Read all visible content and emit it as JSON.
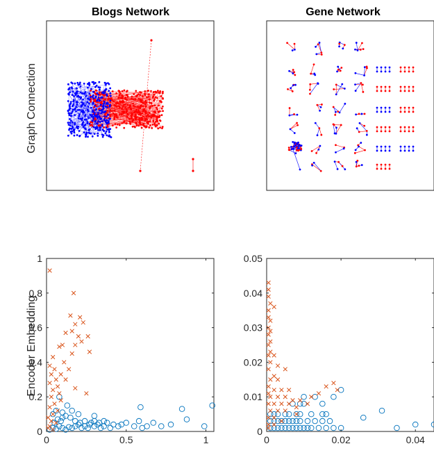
{
  "panels": {
    "top_left_title": "Blogs Network",
    "top_right_title": "Gene Network",
    "top_row_ylabel": "Graph Connection",
    "bottom_row_ylabel": "Encoder Embedding"
  },
  "colors": {
    "node_blue": "#0000ff",
    "node_red": "#ff0000",
    "series_circle": "#0072bd",
    "series_cross": "#d95319"
  },
  "chart_data": [
    {
      "type": "network",
      "title": "Blogs Network",
      "ylabel": "Graph Connection",
      "node_classes": [
        "blue",
        "red"
      ]
    },
    {
      "type": "network",
      "title": "Gene Network",
      "node_classes": [
        "blue",
        "red"
      ]
    },
    {
      "type": "scatter",
      "ylabel": "Encoder Embedding",
      "xlim": [
        0,
        1.05
      ],
      "ylim": [
        0,
        1
      ],
      "xticks": [
        0,
        0.5,
        1
      ],
      "xtick_labels": [
        "0",
        "0.5",
        "1"
      ],
      "yticks": [
        0,
        0.2,
        0.4,
        0.6,
        0.8,
        1
      ],
      "ytick_labels": [
        "0",
        "0.2",
        "0.4",
        "0.6",
        "0.8",
        "1"
      ],
      "series": [
        {
          "marker": "circle",
          "points": [
            [
              0.02,
              0.01
            ],
            [
              0.04,
              0.02
            ],
            [
              0.06,
              0.015
            ],
            [
              0.08,
              0.03
            ],
            [
              0.1,
              0.02
            ],
            [
              0.12,
              0.01
            ],
            [
              0.14,
              0.025
            ],
            [
              0.16,
              0.02
            ],
            [
              0.18,
              0.03
            ],
            [
              0.2,
              0.04
            ],
            [
              0.22,
              0.02
            ],
            [
              0.24,
              0.03
            ],
            [
              0.26,
              0.02
            ],
            [
              0.28,
              0.05
            ],
            [
              0.3,
              0.03
            ],
            [
              0.32,
              0.04
            ],
            [
              0.34,
              0.02
            ],
            [
              0.36,
              0.03
            ],
            [
              0.38,
              0.05
            ],
            [
              0.4,
              0.02
            ],
            [
              0.42,
              0.04
            ],
            [
              0.45,
              0.03
            ],
            [
              0.5,
              0.05
            ],
            [
              0.55,
              0.03
            ],
            [
              0.6,
              0.02
            ],
            [
              0.05,
              0.05
            ],
            [
              0.07,
              0.07
            ],
            [
              0.09,
              0.06
            ],
            [
              0.12,
              0.09
            ],
            [
              0.15,
              0.08
            ],
            [
              0.18,
              0.06
            ],
            [
              0.21,
              0.05
            ],
            [
              0.24,
              0.06
            ],
            [
              0.27,
              0.04
            ],
            [
              0.3,
              0.06
            ],
            [
              0.33,
              0.05
            ],
            [
              0.04,
              0.1
            ],
            [
              0.06,
              0.12
            ],
            [
              0.1,
              0.11
            ],
            [
              0.1,
              0.08
            ],
            [
              0.13,
              0.15
            ],
            [
              0.16,
              0.12
            ],
            [
              0.2,
              0.1
            ],
            [
              0.3,
              0.09
            ],
            [
              0.08,
              0.2
            ],
            [
              0.36,
              0.06
            ],
            [
              0.47,
              0.04
            ],
            [
              0.58,
              0.06
            ],
            [
              0.59,
              0.14
            ],
            [
              0.63,
              0.03
            ],
            [
              0.67,
              0.05
            ],
            [
              0.72,
              0.03
            ],
            [
              0.78,
              0.04
            ],
            [
              0.85,
              0.13
            ],
            [
              0.88,
              0.07
            ],
            [
              0.99,
              0.03
            ],
            [
              1.04,
              0.15
            ]
          ]
        },
        {
          "marker": "cross",
          "points": [
            [
              0.02,
              0.93
            ],
            [
              0.17,
              0.8
            ],
            [
              0.15,
              0.67
            ],
            [
              0.21,
              0.66
            ],
            [
              0.23,
              0.63
            ],
            [
              0.18,
              0.62
            ],
            [
              0.12,
              0.57
            ],
            [
              0.16,
              0.58
            ],
            [
              0.2,
              0.55
            ],
            [
              0.26,
              0.55
            ],
            [
              0.22,
              0.52
            ],
            [
              0.1,
              0.5
            ],
            [
              0.08,
              0.49
            ],
            [
              0.18,
              0.5
            ],
            [
              0.27,
              0.46
            ],
            [
              0.16,
              0.45
            ],
            [
              0.04,
              0.43
            ],
            [
              0.11,
              0.4
            ],
            [
              0.14,
              0.36
            ],
            [
              0.09,
              0.33
            ],
            [
              0.12,
              0.3
            ],
            [
              0.18,
              0.25
            ],
            [
              0.25,
              0.22
            ],
            [
              0.02,
              0.38
            ],
            [
              0.05,
              0.36
            ],
            [
              0.03,
              0.33
            ],
            [
              0.06,
              0.3
            ],
            [
              0.02,
              0.28
            ],
            [
              0.07,
              0.26
            ],
            [
              0.04,
              0.24
            ],
            [
              0.08,
              0.22
            ],
            [
              0.03,
              0.2
            ],
            [
              0.09,
              0.18
            ],
            [
              0.05,
              0.16
            ],
            [
              0.02,
              0.14
            ],
            [
              0.07,
              0.12
            ],
            [
              0.04,
              0.1
            ],
            [
              0.01,
              0.08
            ],
            [
              0.03,
              0.06
            ],
            [
              0.06,
              0.05
            ],
            [
              0.02,
              0.03
            ],
            [
              0.01,
              0.02
            ],
            [
              0.04,
              0.01
            ]
          ]
        }
      ]
    },
    {
      "type": "scatter",
      "xlim": [
        0,
        0.045
      ],
      "ylim": [
        0,
        0.05
      ],
      "xticks": [
        0,
        0.02,
        0.04
      ],
      "xtick_labels": [
        "0",
        "0.02",
        "0.04"
      ],
      "yticks": [
        0,
        0.01,
        0.02,
        0.03,
        0.04,
        0.05
      ],
      "ytick_labels": [
        "0",
        "0.01",
        "0.02",
        "0.03",
        "0.04",
        "0.05"
      ],
      "series": [
        {
          "marker": "circle",
          "points": [
            [
              0.001,
              0.001
            ],
            [
              0.002,
              0.001
            ],
            [
              0.003,
              0.001
            ],
            [
              0.004,
              0.001
            ],
            [
              0.005,
              0.001
            ],
            [
              0.006,
              0.001
            ],
            [
              0.007,
              0.001
            ],
            [
              0.008,
              0.001
            ],
            [
              0.009,
              0.001
            ],
            [
              0.01,
              0.001
            ],
            [
              0.011,
              0.001
            ],
            [
              0.012,
              0.001
            ],
            [
              0.014,
              0.001
            ],
            [
              0.016,
              0.001
            ],
            [
              0.018,
              0.001
            ],
            [
              0.02,
              0.001
            ],
            [
              0.001,
              0.003
            ],
            [
              0.002,
              0.003
            ],
            [
              0.003,
              0.003
            ],
            [
              0.004,
              0.003
            ],
            [
              0.005,
              0.003
            ],
            [
              0.006,
              0.003
            ],
            [
              0.007,
              0.003
            ],
            [
              0.008,
              0.003
            ],
            [
              0.009,
              0.003
            ],
            [
              0.011,
              0.003
            ],
            [
              0.013,
              0.003
            ],
            [
              0.015,
              0.003
            ],
            [
              0.017,
              0.003
            ],
            [
              0.001,
              0.005
            ],
            [
              0.002,
              0.005
            ],
            [
              0.003,
              0.005
            ],
            [
              0.005,
              0.005
            ],
            [
              0.006,
              0.005
            ],
            [
              0.008,
              0.005
            ],
            [
              0.009,
              0.005
            ],
            [
              0.012,
              0.005
            ],
            [
              0.015,
              0.005
            ],
            [
              0.016,
              0.005
            ],
            [
              0.007,
              0.008
            ],
            [
              0.009,
              0.008
            ],
            [
              0.01,
              0.008
            ],
            [
              0.01,
              0.01
            ],
            [
              0.013,
              0.01
            ],
            [
              0.015,
              0.008
            ],
            [
              0.018,
              0.01
            ],
            [
              0.02,
              0.012
            ],
            [
              0.026,
              0.004
            ],
            [
              0.031,
              0.006
            ],
            [
              0.035,
              0.001
            ],
            [
              0.04,
              0.002
            ],
            [
              0.045,
              0.002
            ]
          ]
        },
        {
          "marker": "cross",
          "points": [
            [
              0.0005,
              0.043
            ],
            [
              0.0005,
              0.041
            ],
            [
              0.0005,
              0.039
            ],
            [
              0.001,
              0.037
            ],
            [
              0.002,
              0.036
            ],
            [
              0.0005,
              0.035
            ],
            [
              0.0005,
              0.033
            ],
            [
              0.001,
              0.032
            ],
            [
              0.0005,
              0.03
            ],
            [
              0.001,
              0.029
            ],
            [
              0.0005,
              0.028
            ],
            [
              0.001,
              0.026
            ],
            [
              0.0005,
              0.025
            ],
            [
              0.001,
              0.023
            ],
            [
              0.0005,
              0.022
            ],
            [
              0.001,
              0.02
            ],
            [
              0.0005,
              0.018
            ],
            [
              0.002,
              0.022
            ],
            [
              0.003,
              0.019
            ],
            [
              0.005,
              0.018
            ],
            [
              0.002,
              0.016
            ],
            [
              0.003,
              0.015
            ],
            [
              0.001,
              0.015
            ],
            [
              0.0005,
              0.013
            ],
            [
              0.002,
              0.012
            ],
            [
              0.004,
              0.012
            ],
            [
              0.006,
              0.012
            ],
            [
              0.0005,
              0.011
            ],
            [
              0.001,
              0.01
            ],
            [
              0.003,
              0.01
            ],
            [
              0.005,
              0.01
            ],
            [
              0.007,
              0.009
            ],
            [
              0.009,
              0.009
            ],
            [
              0.011,
              0.008
            ],
            [
              0.0005,
              0.008
            ],
            [
              0.002,
              0.008
            ],
            [
              0.004,
              0.008
            ],
            [
              0.006,
              0.008
            ],
            [
              0.008,
              0.007
            ],
            [
              0.001,
              0.006
            ],
            [
              0.003,
              0.006
            ],
            [
              0.005,
              0.006
            ],
            [
              0.008,
              0.005
            ],
            [
              0.0005,
              0.004
            ],
            [
              0.002,
              0.004
            ],
            [
              0.004,
              0.003
            ],
            [
              0.0005,
              0.002
            ],
            [
              0.002,
              0.002
            ],
            [
              0.0005,
              0.001
            ],
            [
              0.012,
              0.01
            ],
            [
              0.014,
              0.011
            ],
            [
              0.016,
              0.013
            ],
            [
              0.018,
              0.014
            ],
            [
              0.019,
              0.012
            ]
          ]
        }
      ]
    }
  ]
}
